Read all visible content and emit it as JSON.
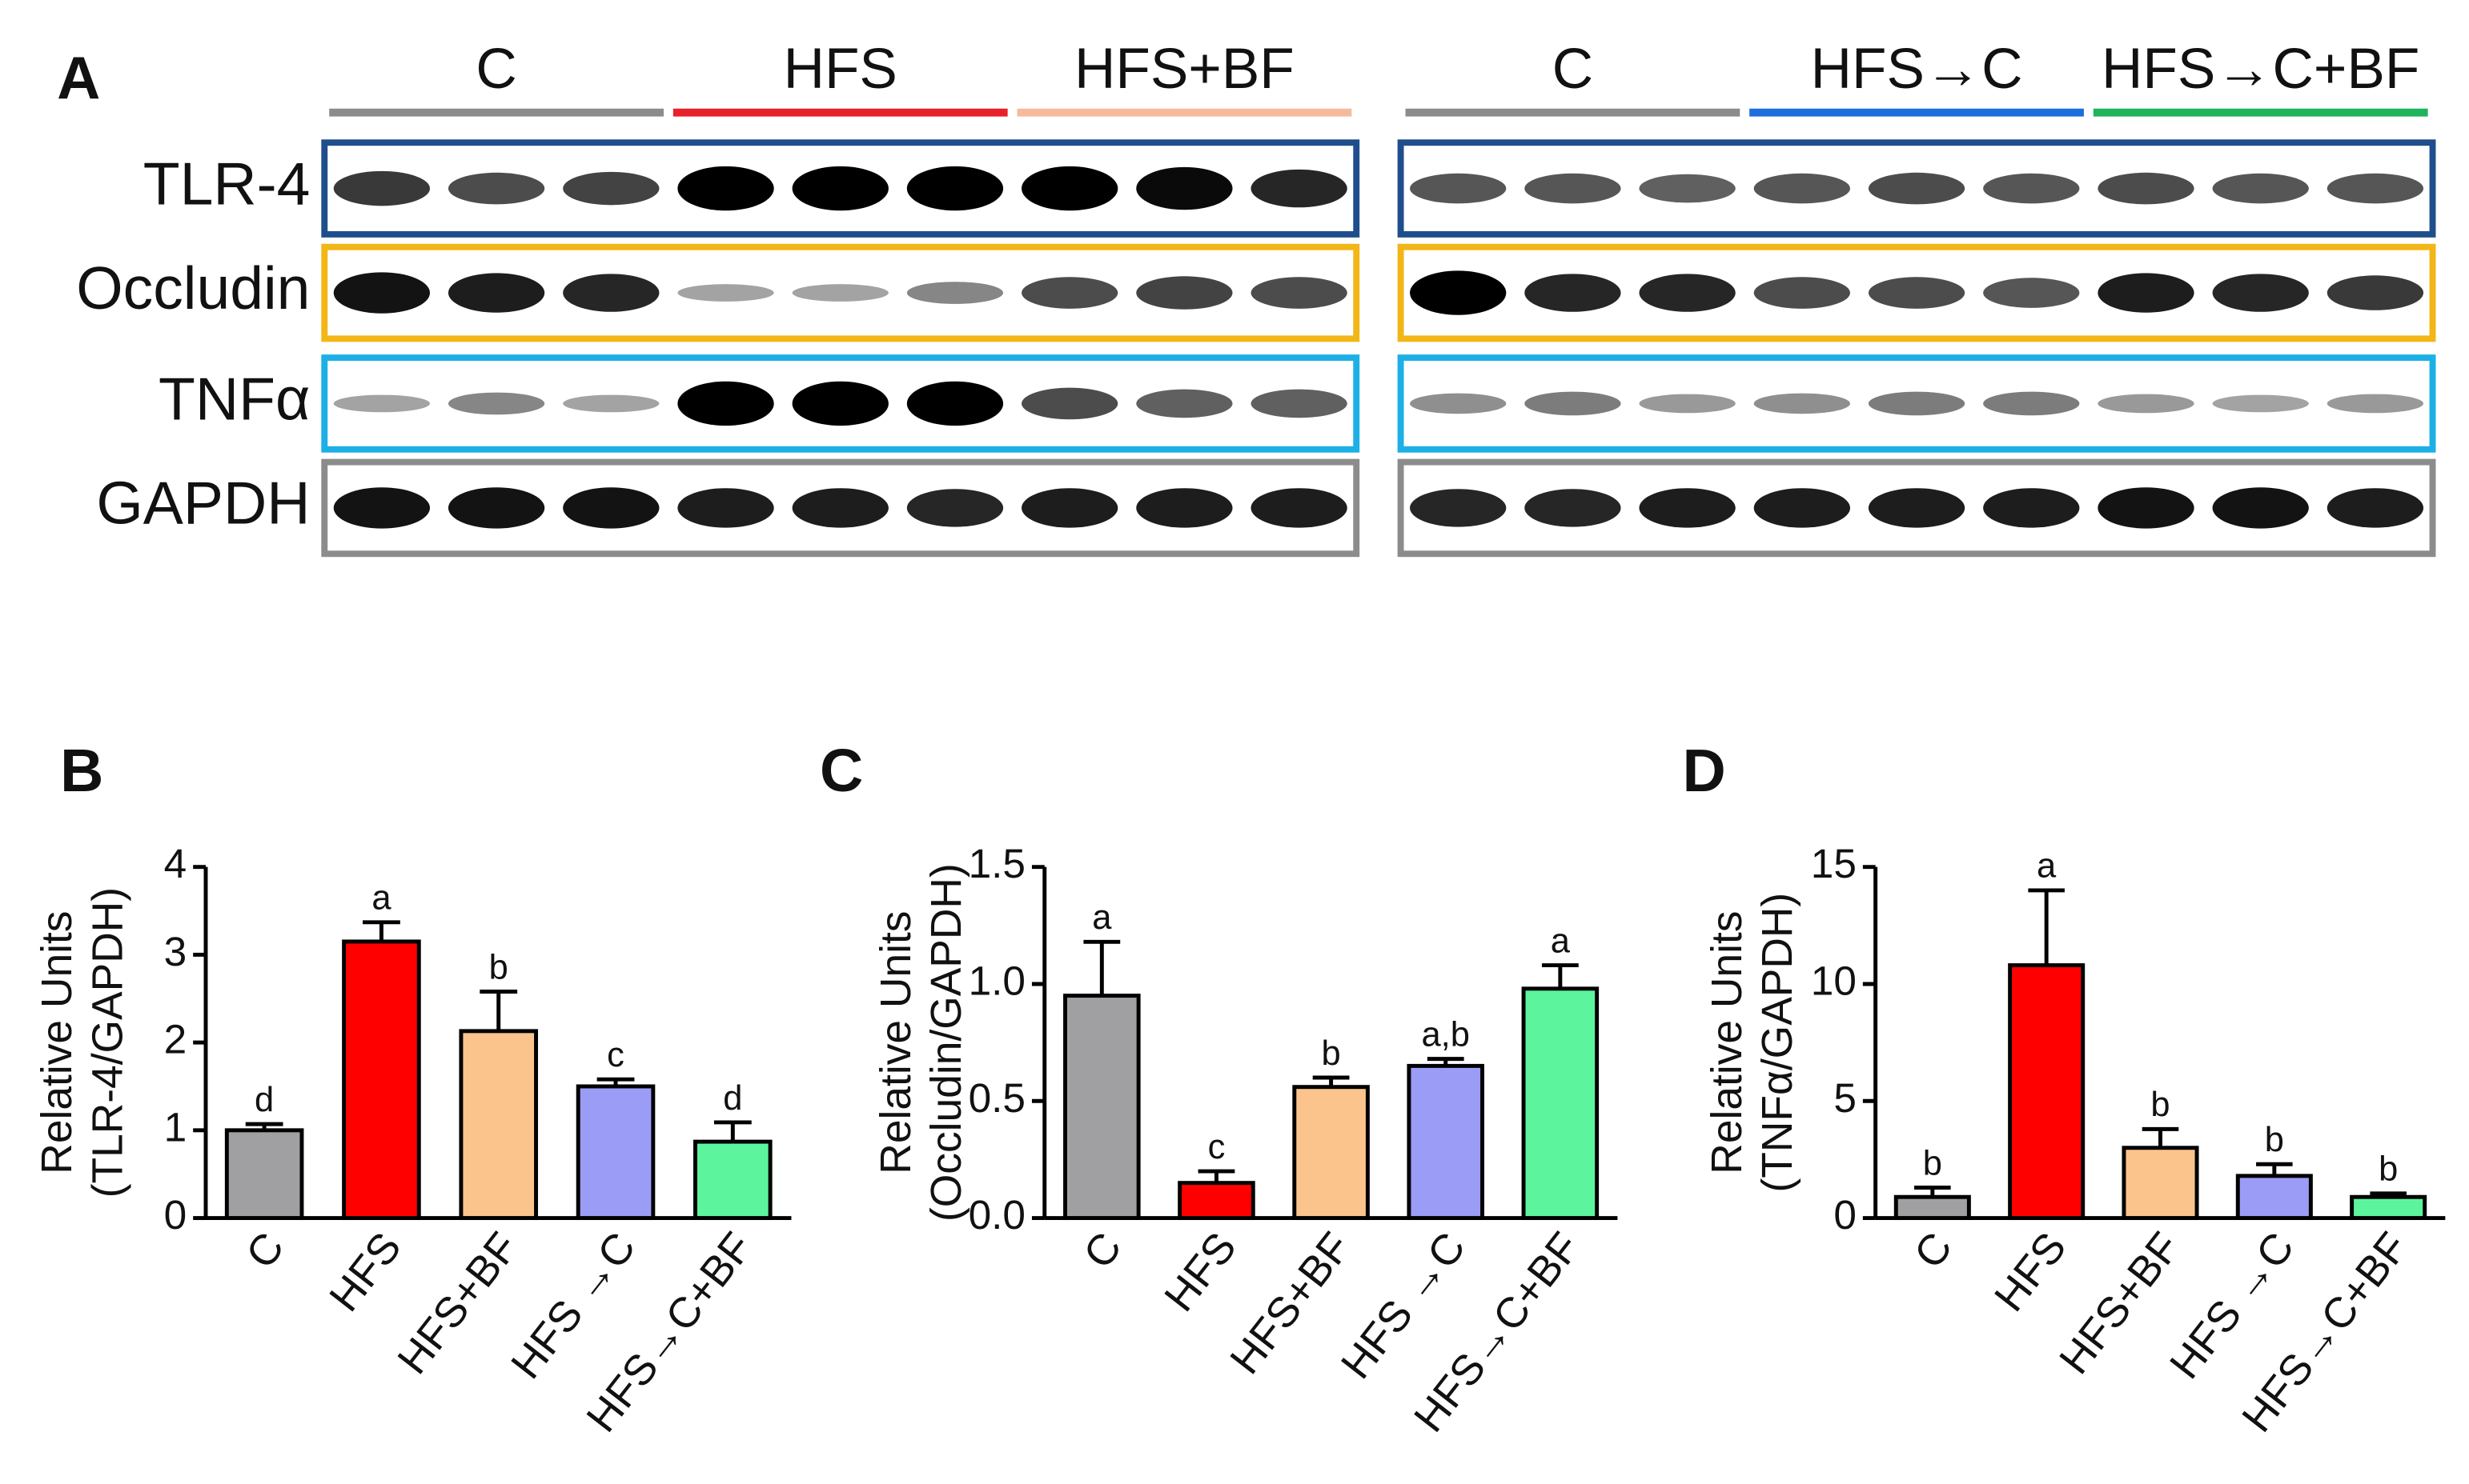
{
  "blot": {
    "label": "A",
    "groups_left": [
      {
        "name": "C",
        "color": "#8c8c8c"
      },
      {
        "name": "HFS",
        "color": "#e8202a"
      },
      {
        "name": "HFS+BF",
        "color": "#f7b99b"
      }
    ],
    "groups_right": [
      {
        "name": "C",
        "color": "#8c8c8c"
      },
      {
        "name": "HFS→C",
        "color": "#1e6fdc"
      },
      {
        "name": "HFS→C+BF",
        "color": "#1fb35a"
      }
    ],
    "rows": [
      {
        "name": "TLR-4",
        "color": "#1f4e8c"
      },
      {
        "name": "Occludin",
        "color": "#f2b616"
      },
      {
        "name": "TNFα",
        "color": "#1cb0e6"
      },
      {
        "name": "GAPDH",
        "color": "#8c8c8c"
      }
    ]
  },
  "chart_data": [
    {
      "type": "bar",
      "label": "B",
      "y_label": [
        "Relative Units",
        "(TLR-4/GAPDH)"
      ],
      "categories": [
        "C",
        "HFS",
        "HFS+BF",
        "HFS →C",
        "HFS→C+BF"
      ],
      "colors": [
        "#a0a0a3",
        "#ff0000",
        "#fbc48c",
        "#9b9cf5",
        "#5cf59d"
      ],
      "values": [
        1.0,
        3.15,
        2.13,
        1.5,
        0.87
      ],
      "errors": [
        0.07,
        0.22,
        0.45,
        0.08,
        0.22
      ],
      "annotations": [
        "d",
        "a",
        "b",
        "c",
        "d"
      ],
      "ylim": [
        0,
        4
      ],
      "yticks": [
        0,
        1,
        2,
        3,
        4
      ]
    },
    {
      "type": "bar",
      "label": "C",
      "y_label": [
        "Relative Units",
        "(Occludin/GAPDH)"
      ],
      "categories": [
        "C",
        "HFS",
        "HFS+BF",
        "HFS →C",
        "HFS→C+BF"
      ],
      "colors": [
        "#a0a0a3",
        "#ff0000",
        "#fbc48c",
        "#9b9cf5",
        "#5cf59d"
      ],
      "values": [
        0.95,
        0.15,
        0.56,
        0.65,
        0.98
      ],
      "errors": [
        0.23,
        0.05,
        0.04,
        0.03,
        0.1
      ],
      "annotations": [
        "a",
        "c",
        "b",
        "a,b",
        "a"
      ],
      "ylim": [
        0,
        1.5
      ],
      "yticks": [
        {
          "value": 0,
          "label": "0.0"
        },
        0.5,
        {
          "value": 1,
          "label": "1.0"
        },
        1.5
      ]
    },
    {
      "type": "bar",
      "label": "D",
      "y_label": [
        "Relative Units",
        "(TNFα/GAPDH)"
      ],
      "categories": [
        "C",
        "HFS",
        "HFS+BF",
        "HFS →C",
        "HFS→C+BF"
      ],
      "colors": [
        "#a0a0a3",
        "#ff0000",
        "#fbc48c",
        "#9b9cf5",
        "#5cf59d"
      ],
      "values": [
        0.9,
        10.8,
        3.0,
        1.8,
        0.9
      ],
      "errors": [
        0.4,
        3.2,
        0.8,
        0.5,
        0.15
      ],
      "annotations": [
        "b",
        "a",
        "b",
        "b",
        "b"
      ],
      "ylim": [
        0,
        15
      ],
      "yticks": [
        0,
        5,
        10,
        15
      ]
    }
  ]
}
